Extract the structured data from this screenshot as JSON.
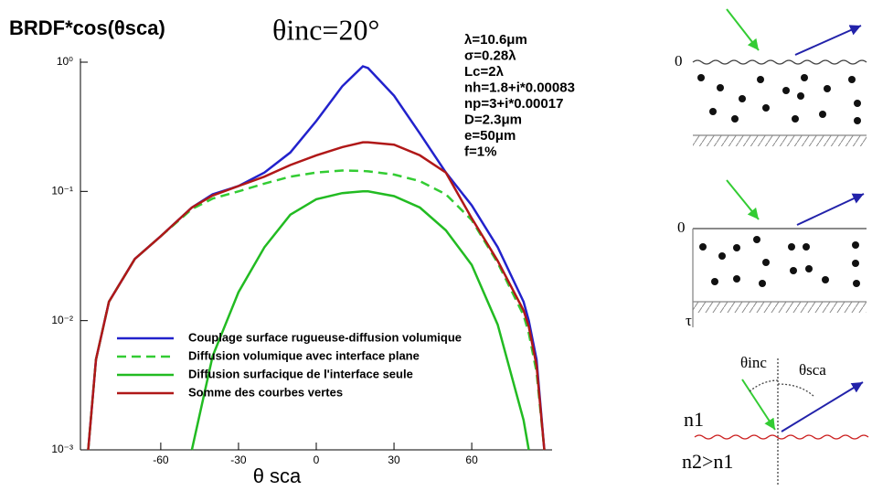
{
  "chart_data": {
    "type": "line",
    "title": "BRDF*cos(θsca)",
    "subtitle": "θinc=20°",
    "annotations": [
      "λ=10.6μm",
      "σ=0.28λ",
      "Lc=2λ",
      "nh=1.8+i*0.00083",
      "np=3+i*0.00017",
      "D=2.3μm",
      "e=50μm",
      "f=1%"
    ],
    "x_label": "θ sca",
    "x": [
      -88,
      -85,
      -80,
      -70,
      -60,
      -48,
      -40,
      -30,
      -20,
      -10,
      0,
      10,
      18,
      20,
      30,
      40,
      50,
      60,
      70,
      80,
      82,
      85,
      88
    ],
    "series": [
      {
        "name": "Couplage surface rugueuse-diffusion volumique",
        "color": "#2222cc",
        "dash": false,
        "values": [
          0.001,
          0.005,
          0.014,
          0.03,
          0.045,
          0.075,
          0.095,
          0.11,
          0.14,
          0.2,
          0.35,
          0.65,
          0.93,
          0.9,
          0.55,
          0.28,
          0.14,
          0.078,
          0.037,
          0.014,
          0.01,
          0.005,
          0.001
        ]
      },
      {
        "name": "Diffusion volumique  avec interface plane",
        "color": "#33cc33",
        "dash": true,
        "values": [
          0.001,
          0.005,
          0.014,
          0.03,
          0.045,
          0.073,
          0.088,
          0.1,
          0.115,
          0.13,
          0.14,
          0.145,
          0.144,
          0.143,
          0.135,
          0.12,
          0.095,
          0.06,
          0.028,
          0.011,
          0.008,
          0.004,
          0.001
        ]
      },
      {
        "name": "Diffusion surfacique de l'interface seule",
        "color": "#22bb22",
        "dash": false,
        "values": [
          null,
          null,
          null,
          null,
          null,
          0.001,
          0.0053,
          0.0166,
          0.037,
          0.066,
          0.087,
          0.097,
          0.1,
          0.1,
          0.092,
          0.075,
          0.05,
          0.027,
          0.0093,
          0.0017,
          0.001,
          null,
          null
        ]
      },
      {
        "name": "Somme des courbes vertes",
        "color": "#b01818",
        "dash": false,
        "values": [
          0.001,
          0.005,
          0.014,
          0.03,
          0.045,
          0.075,
          0.093,
          0.11,
          0.13,
          0.16,
          0.19,
          0.22,
          0.24,
          0.24,
          0.23,
          0.19,
          0.14,
          0.062,
          0.029,
          0.012,
          0.009,
          0.0045,
          0.001
        ]
      }
    ],
    "xlim": [
      -91,
      91
    ],
    "xticks": [
      -60,
      -30,
      0,
      30,
      60
    ],
    "ylim": [
      0.001,
      1
    ],
    "log_y": true,
    "yticks": [
      {
        "value": 0.001,
        "label": "10⁻³"
      },
      {
        "value": 0.01,
        "label": "10⁻²"
      },
      {
        "value": 0.1,
        "label": "10⁻¹"
      },
      {
        "value": 1,
        "label": "10⁰"
      }
    ],
    "grid": false,
    "legend": "lower left"
  },
  "diagram": {
    "top_zero": "0",
    "mid_zero": "0",
    "tau": "τ",
    "theta_inc": "θinc",
    "theta_sca": "θsca",
    "n1": "n1",
    "n2": "n2>n1"
  }
}
